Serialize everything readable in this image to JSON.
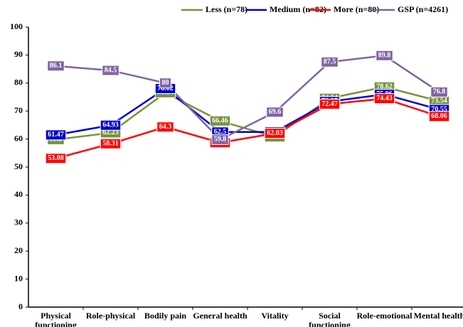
{
  "chart_data": {
    "type": "line",
    "categories": [
      "Physical functioning",
      "Role-physical",
      "Bodily pain",
      "General health",
      "Vitality",
      "Social functioning",
      "Role-emotional",
      "Mental health"
    ],
    "series": [
      {
        "name": "Less (n=78)",
        "color": "#77933c",
        "values": [
          59.8,
          62.23,
          76.54,
          66.46,
          60.77,
          74.54,
          78.62,
          73.54
        ]
      },
      {
        "name": "Medium (n=82)",
        "color": "#0000cc",
        "values": [
          61.47,
          64.93,
          78.02,
          62.5,
          62.52,
          73.37,
          75.96,
          70.55
        ]
      },
      {
        "name": "More (n=80)",
        "color": "#ff0000",
        "values": [
          53.08,
          58.31,
          64.3,
          58.71,
          62.03,
          72.47,
          74.43,
          68.06
        ]
      },
      {
        "name": "GSP (n=4261)",
        "color": "#8064a2",
        "values": [
          86.1,
          84.5,
          80,
          59.8,
          69.6,
          87.5,
          89.8,
          76.8
        ]
      }
    ],
    "ylim": [
      0,
      100
    ],
    "yticks": [
      0,
      10,
      20,
      30,
      40,
      50,
      60,
      70,
      80,
      90,
      100
    ],
    "legend": "top",
    "data_labels": true
  }
}
